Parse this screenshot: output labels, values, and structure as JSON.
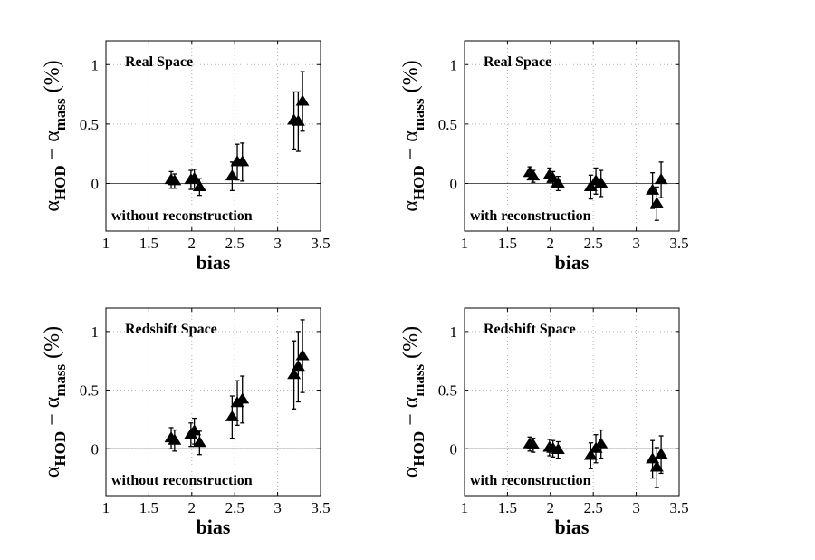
{
  "figure": {
    "background": "#ffffff",
    "marker_color": "#000000",
    "grid_color": "#b0b0b0"
  },
  "chart_data": [
    {
      "type": "scatter",
      "panel": "top-left",
      "title": "Real Space",
      "annotation": "without reconstruction",
      "xlabel": "bias",
      "ylabel": {
        "prefix": "α",
        "sub1": "HOD",
        "mid": " − α",
        "sub2": "mass",
        "suffix": " (%)"
      },
      "xlim": [
        1,
        3.5
      ],
      "ylim": [
        -0.4,
        1.2
      ],
      "xticks": [
        1,
        1.5,
        2,
        2.5,
        3,
        3.5
      ],
      "xticklabels": [
        "1",
        "1.5",
        "2",
        "2.5",
        "3",
        "3.5"
      ],
      "yticks": [
        0,
        0.5,
        1
      ],
      "yticklabels": [
        "0",
        "0.5",
        "1"
      ],
      "grid": true,
      "zero_line": true,
      "x": [
        1.76,
        1.8,
        1.99,
        2.03,
        2.09,
        2.47,
        2.53,
        2.59,
        3.19,
        3.24,
        3.29
      ],
      "y": [
        0.03,
        0.02,
        0.03,
        0.04,
        -0.03,
        0.06,
        0.18,
        0.18,
        0.53,
        0.52,
        0.69
      ],
      "yerr": [
        0.07,
        0.06,
        0.08,
        0.08,
        0.07,
        0.12,
        0.15,
        0.16,
        0.24,
        0.25,
        0.25
      ]
    },
    {
      "type": "scatter",
      "panel": "top-right",
      "title": "Real Space",
      "annotation": "with reconstruction",
      "xlabel": "bias",
      "ylabel": {
        "prefix": "α",
        "sub1": "HOD",
        "mid": " − α",
        "sub2": "mass",
        "suffix": " (%)"
      },
      "xlim": [
        1,
        3.5
      ],
      "ylim": [
        -0.4,
        1.2
      ],
      "xticks": [
        1,
        1.5,
        2,
        2.5,
        3,
        3.5
      ],
      "xticklabels": [
        "1",
        "1.5",
        "2",
        "2.5",
        "3",
        "3.5"
      ],
      "yticks": [
        0,
        0.5,
        1
      ],
      "yticklabels": [
        "0",
        "0.5",
        "1"
      ],
      "grid": true,
      "zero_line": true,
      "x": [
        1.76,
        1.8,
        1.99,
        2.03,
        2.09,
        2.47,
        2.53,
        2.59,
        3.19,
        3.24,
        3.29
      ],
      "y": [
        0.09,
        0.06,
        0.07,
        0.04,
        0.0,
        -0.03,
        0.02,
        0.0,
        -0.06,
        -0.17,
        0.03
      ],
      "yerr": [
        0.05,
        0.05,
        0.06,
        0.06,
        0.06,
        0.1,
        0.11,
        0.11,
        0.15,
        0.14,
        0.15
      ]
    },
    {
      "type": "scatter",
      "panel": "bottom-left",
      "title": "Redshift Space",
      "annotation": "without reconstruction",
      "xlabel": "bias",
      "ylabel": {
        "prefix": "α",
        "sub1": "HOD",
        "mid": " − α",
        "sub2": "mass",
        "suffix": " (%)"
      },
      "xlim": [
        1,
        3.5
      ],
      "ylim": [
        -0.4,
        1.2
      ],
      "xticks": [
        1,
        1.5,
        2,
        2.5,
        3,
        3.5
      ],
      "xticklabels": [
        "1",
        "1.5",
        "2",
        "2.5",
        "3",
        "3.5"
      ],
      "yticks": [
        0,
        0.5,
        1
      ],
      "yticklabels": [
        "0",
        "0.5",
        "1"
      ],
      "grid": true,
      "zero_line": true,
      "x": [
        1.76,
        1.8,
        1.99,
        2.03,
        2.09,
        2.47,
        2.53,
        2.59,
        3.19,
        3.24,
        3.29
      ],
      "y": [
        0.09,
        0.07,
        0.12,
        0.15,
        0.05,
        0.27,
        0.39,
        0.42,
        0.63,
        0.7,
        0.79
      ],
      "yerr": [
        0.09,
        0.09,
        0.1,
        0.11,
        0.1,
        0.18,
        0.19,
        0.2,
        0.29,
        0.3,
        0.31
      ]
    },
    {
      "type": "scatter",
      "panel": "bottom-right",
      "title": "Redshift Space",
      "annotation": "with reconstruction",
      "xlabel": "bias",
      "ylabel": {
        "prefix": "α",
        "sub1": "HOD",
        "mid": " − α",
        "sub2": "mass",
        "suffix": " (%)"
      },
      "xlim": [
        1,
        3.5
      ],
      "ylim": [
        -0.4,
        1.2
      ],
      "xticks": [
        1,
        1.5,
        2,
        2.5,
        3,
        3.5
      ],
      "xticklabels": [
        "1",
        "1.5",
        "2",
        "2.5",
        "3",
        "3.5"
      ],
      "yticks": [
        0,
        0.5,
        1
      ],
      "yticklabels": [
        "0",
        "0.5",
        "1"
      ],
      "grid": true,
      "zero_line": true,
      "x": [
        1.76,
        1.8,
        1.99,
        2.03,
        2.09,
        2.47,
        2.53,
        2.59,
        3.19,
        3.24,
        3.29
      ],
      "y": [
        0.04,
        0.03,
        0.01,
        0.0,
        -0.01,
        -0.06,
        0.0,
        0.04,
        -0.09,
        -0.16,
        -0.05
      ],
      "yerr": [
        0.06,
        0.06,
        0.07,
        0.07,
        0.07,
        0.11,
        0.12,
        0.12,
        0.16,
        0.17,
        0.16
      ]
    }
  ]
}
